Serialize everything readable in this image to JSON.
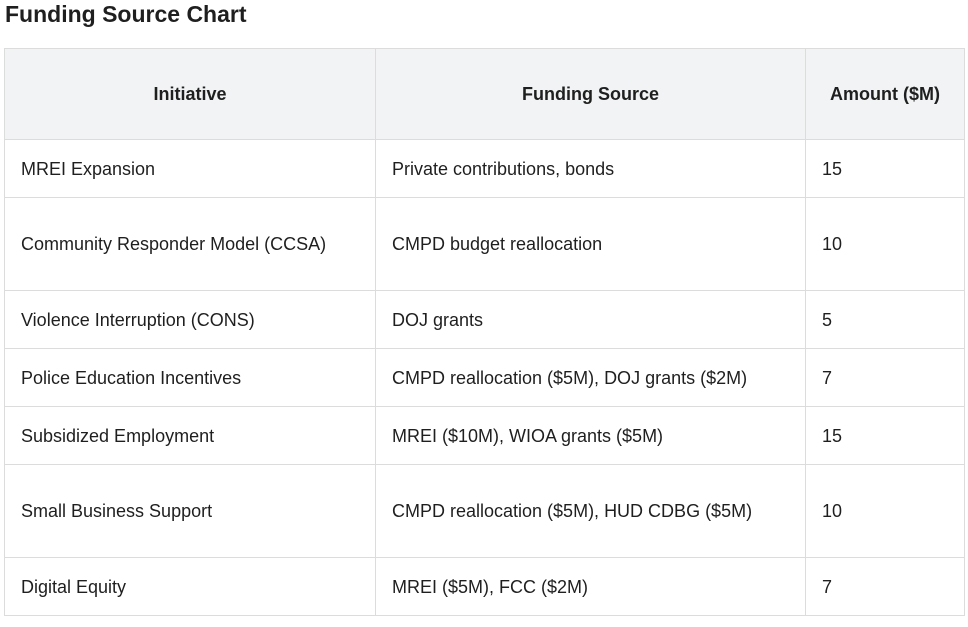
{
  "document": {
    "title": "Funding Source Chart"
  },
  "table": {
    "headers": {
      "initiative": "Initiative",
      "funding_source": "Funding Source",
      "amount": "Amount ($M)"
    },
    "rows": [
      {
        "initiative": "MREI Expansion",
        "funding_source": "Private contributions, bonds",
        "amount": "15"
      },
      {
        "initiative": "Community Responder Model (CCSA)",
        "funding_source": "CMPD budget reallocation",
        "amount": "10"
      },
      {
        "initiative": "Violence Interruption (CONS)",
        "funding_source": "DOJ grants",
        "amount": "5"
      },
      {
        "initiative": "Police Education Incentives",
        "funding_source": "CMPD reallocation ($5M), DOJ grants ($2M)",
        "amount": "7"
      },
      {
        "initiative": "Subsidized Employment",
        "funding_source": "MREI ($10M), WIOA grants ($5M)",
        "amount": "15"
      },
      {
        "initiative": "Small Business Support",
        "funding_source": "CMPD reallocation ($5M), HUD CDBG ($5M)",
        "amount": "10"
      },
      {
        "initiative": "Digital Equity",
        "funding_source": "MREI ($5M), FCC ($2M)",
        "amount": "7"
      }
    ]
  }
}
